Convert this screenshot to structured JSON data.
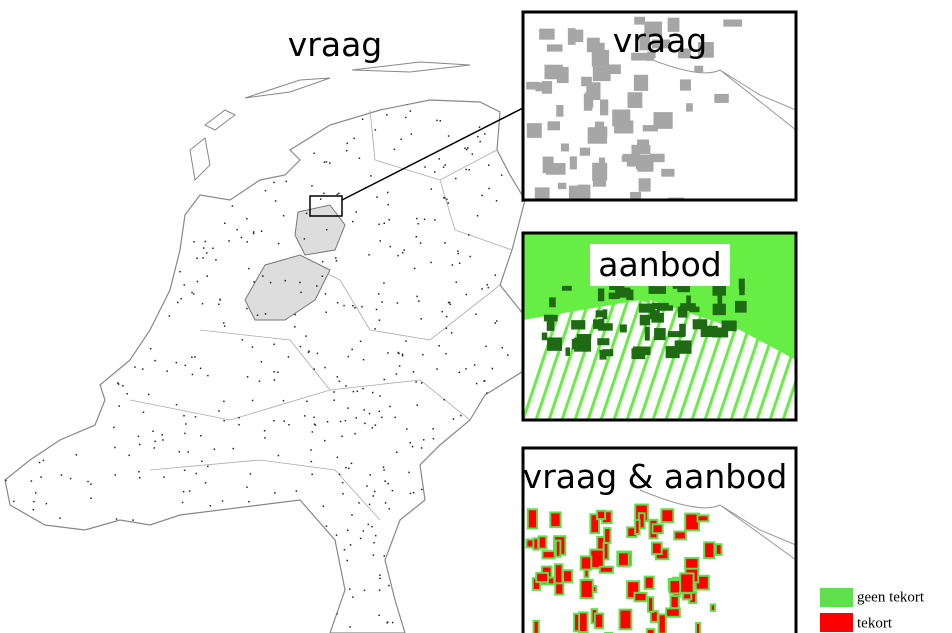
{
  "map": {
    "title": "vraag"
  },
  "panels": [
    {
      "label": "vraag"
    },
    {
      "label": "aanbod"
    },
    {
      "label": "vraag  & aanbod"
    }
  ],
  "legend": [
    {
      "label": "geen tekort",
      "color": "#5ee04c"
    },
    {
      "label": "tekort",
      "color": "#ff0000"
    }
  ]
}
